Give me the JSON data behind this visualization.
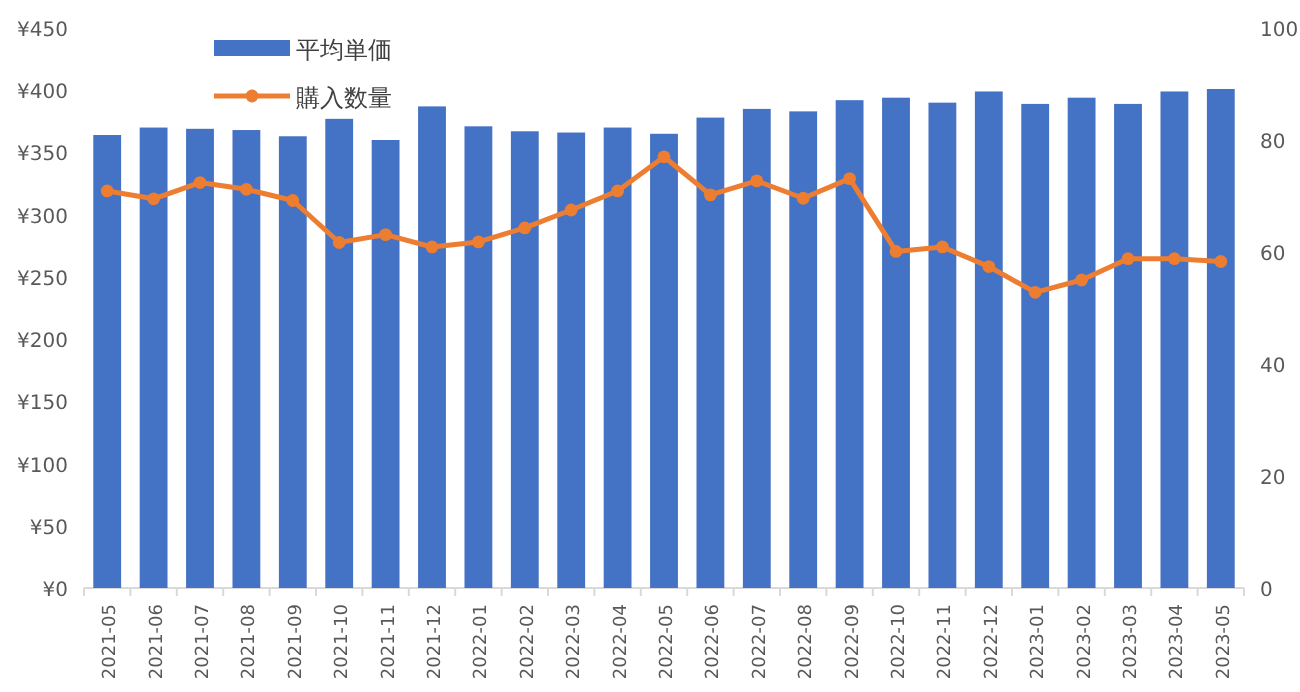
{
  "chart_data": {
    "type": "bar",
    "categories": [
      "2021-05",
      "2021-06",
      "2021-07",
      "2021-08",
      "2021-09",
      "2021-10",
      "2021-11",
      "2021-12",
      "2022-01",
      "2022-02",
      "2022-03",
      "2022-04",
      "2022-05",
      "2022-06",
      "2022-07",
      "2022-08",
      "2022-09",
      "2022-10",
      "2022-11",
      "2022-12",
      "2023-01",
      "2023-02",
      "2023-03",
      "2023-04",
      "2023-05"
    ],
    "series": [
      {
        "name": "平均単価",
        "color": "#4472c4",
        "values": [
          364,
          370,
          369,
          368,
          363,
          377,
          360,
          387,
          371,
          367,
          366,
          370,
          365,
          378,
          385,
          383,
          392,
          394,
          390,
          399,
          389,
          394,
          389,
          399,
          401
        ]
      },
      {
        "name": "購入数量",
        "type": "line",
        "axis": "y2",
        "color": "#ed7d31",
        "values": [
          70.9,
          69.5,
          72.4,
          71.2,
          69.2,
          61.7,
          63.1,
          60.9,
          61.8,
          64.3,
          67.5,
          70.9,
          77.0,
          70.2,
          72.7,
          69.6,
          73.1,
          60.1,
          60.9,
          57.4,
          52.8,
          55.0,
          58.8,
          58.8,
          58.3
        ]
      }
    ],
    "ylim": [
      0,
      450
    ],
    "yticks": [
      {
        "value": 0,
        "label": "¥0"
      },
      {
        "value": 50,
        "label": "¥50"
      },
      {
        "value": 100,
        "label": "¥100"
      },
      {
        "value": 150,
        "label": "¥150"
      },
      {
        "value": 200,
        "label": "¥200"
      },
      {
        "value": 250,
        "label": "¥250"
      },
      {
        "value": 300,
        "label": "¥300"
      },
      {
        "value": 350,
        "label": "¥350"
      },
      {
        "value": 400,
        "label": "¥400"
      },
      {
        "value": 450,
        "label": "¥450"
      }
    ],
    "y2lim": [
      0,
      100
    ],
    "y2ticks": [
      0,
      20,
      40,
      60,
      80,
      100
    ],
    "marker": "circle",
    "legend": "top left",
    "grid": false
  }
}
